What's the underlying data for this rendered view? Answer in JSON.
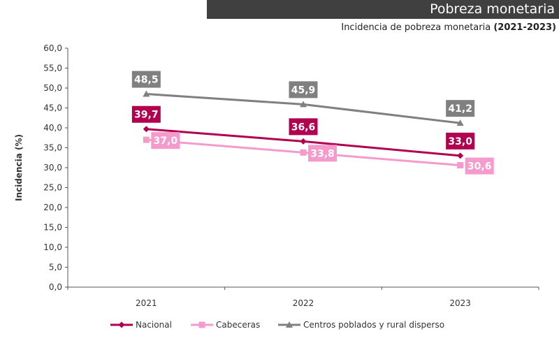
{
  "header": {
    "title": "Pobreza monetaria",
    "subtitle_main": "Incidencia de pobreza monetaria",
    "subtitle_years": "(2021-2023)"
  },
  "chart_data": {
    "type": "line",
    "x": [
      "2021",
      "2022",
      "2023"
    ],
    "ylabel": "Incidencia (%)",
    "ylim": [
      0,
      60
    ],
    "ytick_step": 5,
    "yticks": [
      "0,0",
      "5,0",
      "10,0",
      "15,0",
      "20,0",
      "25,0",
      "30,0",
      "35,0",
      "40,0",
      "45,0",
      "50,0",
      "55,0",
      "60,0"
    ],
    "grid": false,
    "legend_position": "bottom",
    "series": [
      {
        "name": "Nacional",
        "values": [
          39.7,
          36.6,
          33.0
        ],
        "labels": [
          "39,7",
          "36,6",
          "33,0"
        ],
        "color": "#b0004f",
        "marker": "diamond",
        "label_pos": "above"
      },
      {
        "name": "Cabeceras",
        "values": [
          37.0,
          33.8,
          30.6
        ],
        "labels": [
          "37,0",
          "33,8",
          "30,6"
        ],
        "color": "#f59bcc",
        "marker": "square",
        "label_pos": "right"
      },
      {
        "name": "Centros poblados y rural disperso",
        "values": [
          48.5,
          45.9,
          41.2
        ],
        "labels": [
          "48,5",
          "45,9",
          "41,2"
        ],
        "color": "#808080",
        "marker": "triangle",
        "label_pos": "above"
      }
    ]
  }
}
